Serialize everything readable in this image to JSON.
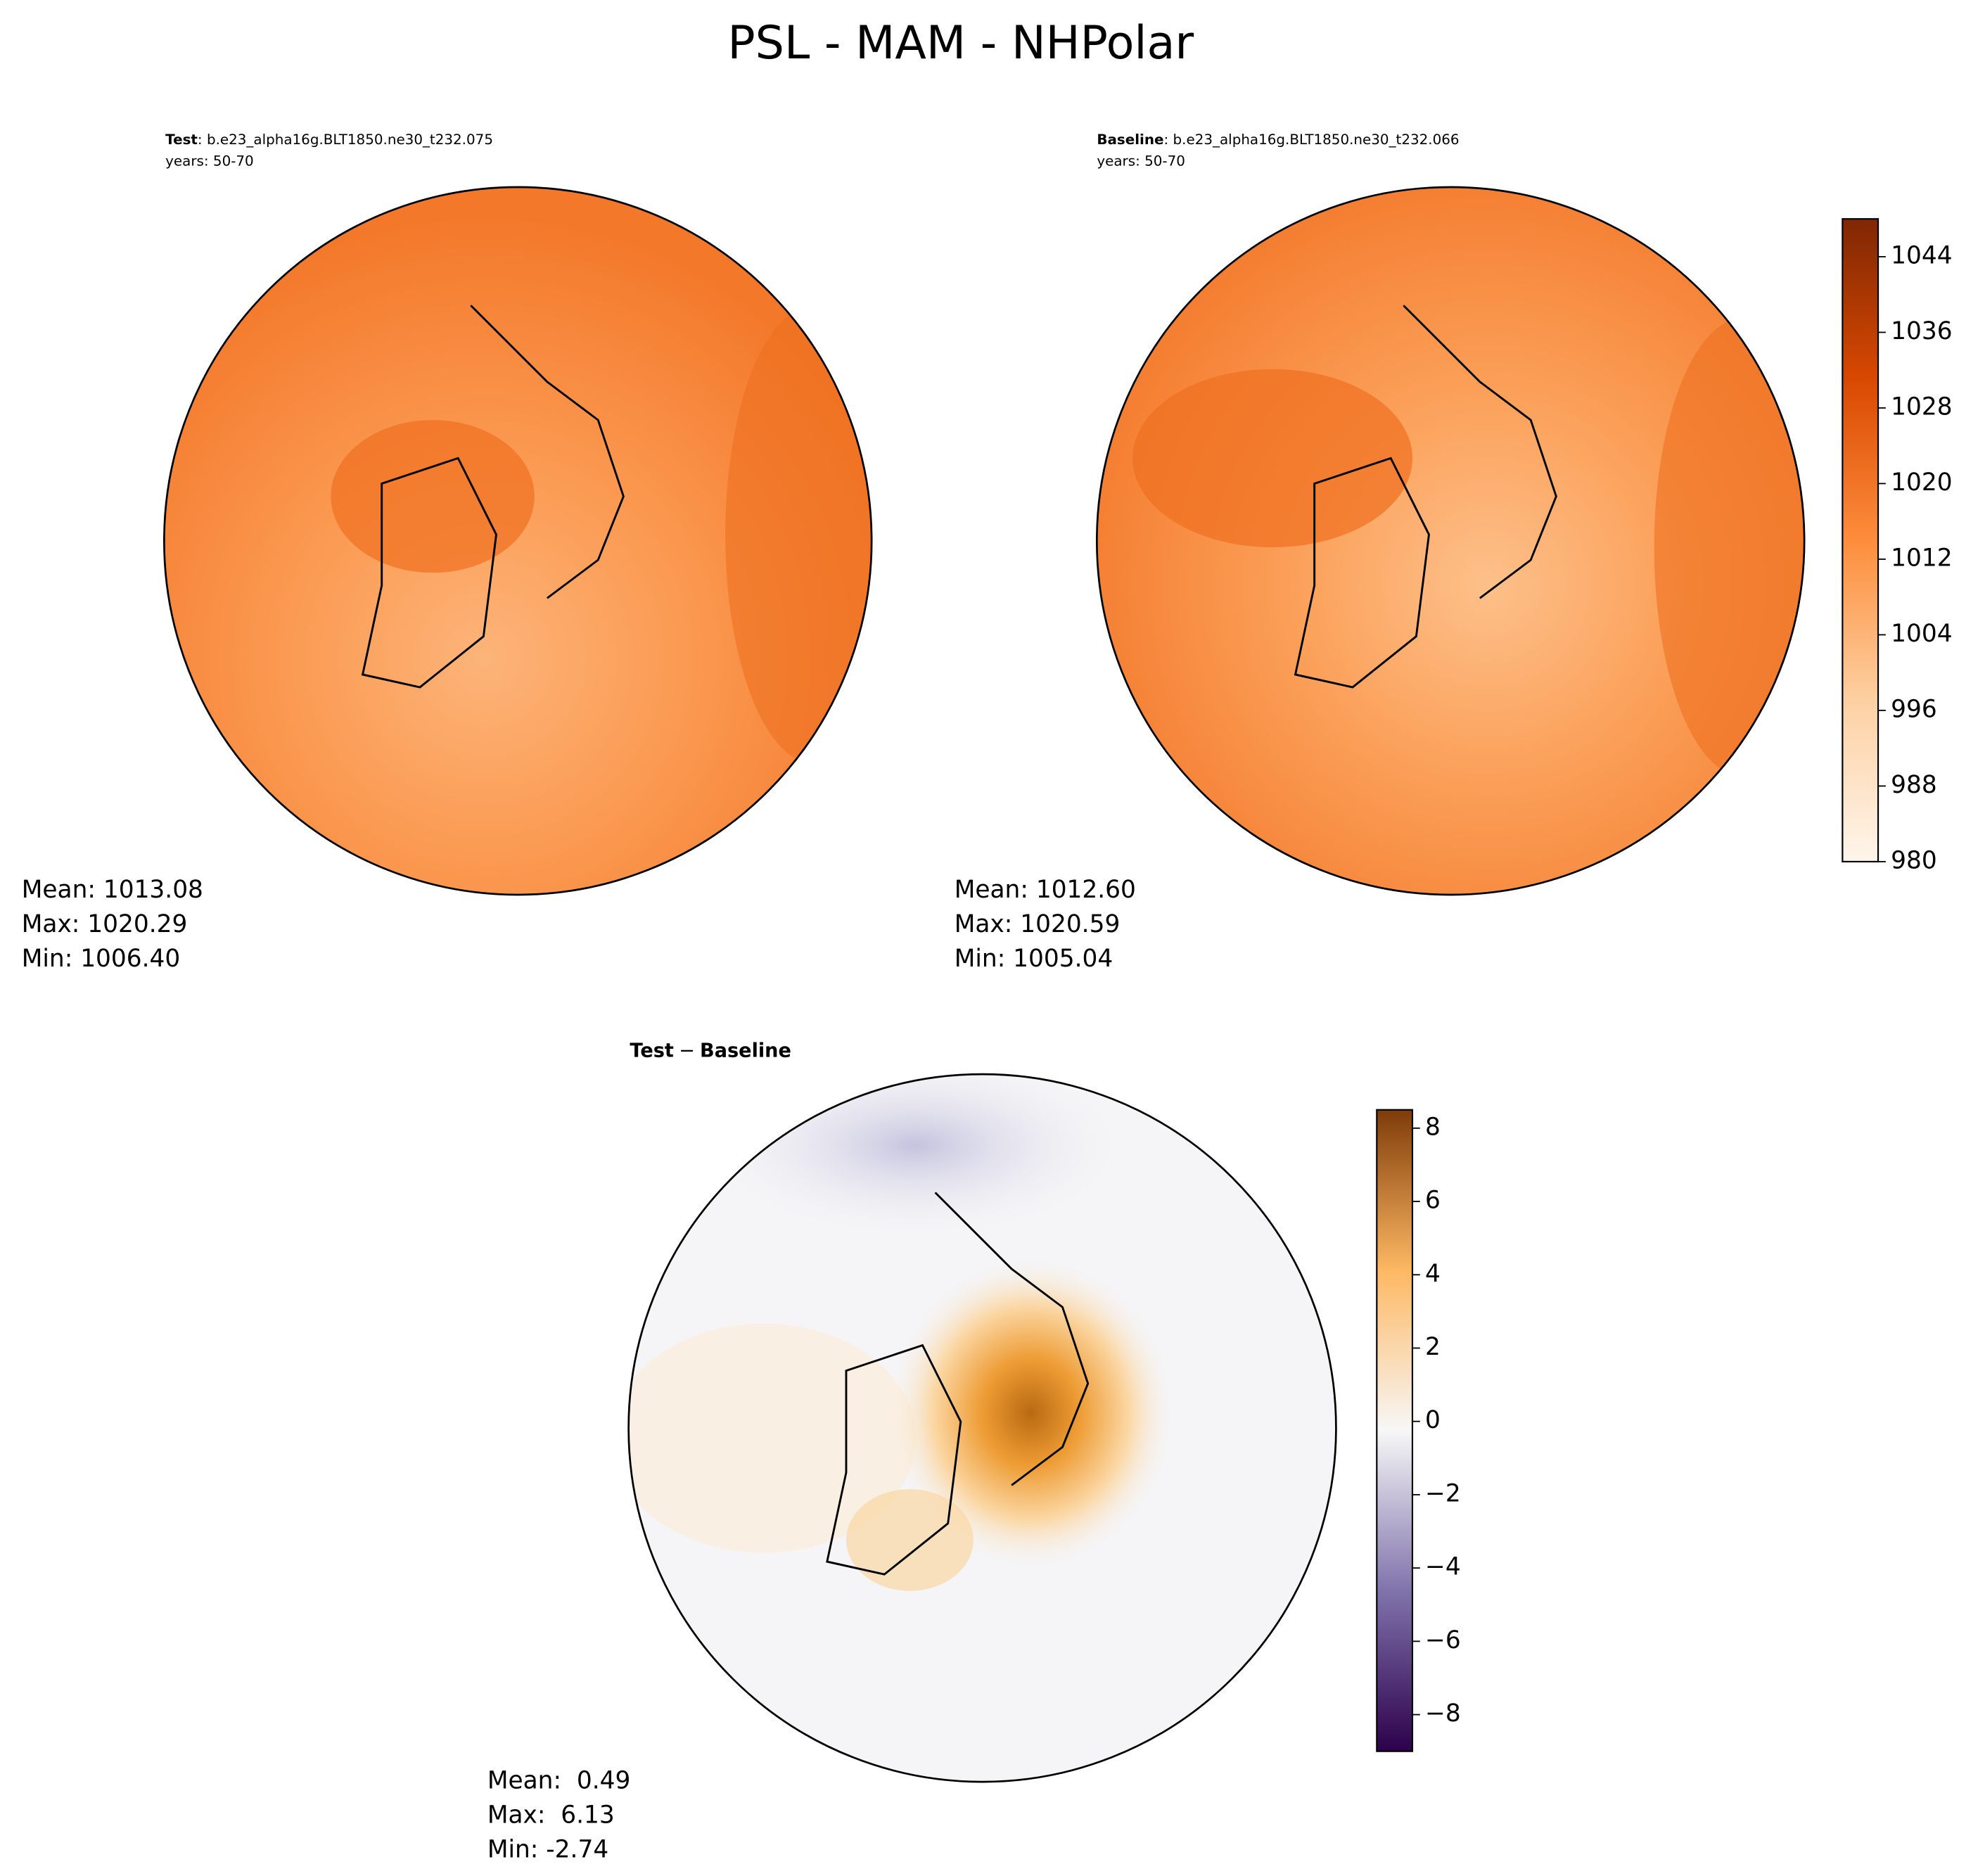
{
  "title": "PSL - MAM - NHPolar",
  "chart_data": [
    {
      "type": "contour",
      "title_label": "Test",
      "title": ": b.e23_alpha16g.BLT1850.ne30_t232.075",
      "subtitle": "years: 50-70",
      "stats": [
        "Mean: 1013.08",
        "Max: 1020.29",
        "Min: 1006.40"
      ]
    },
    {
      "type": "contour",
      "title_label": "Baseline",
      "title": ": b.e23_alpha16g.BLT1850.ne30_t232.066",
      "subtitle": "years: 50-70",
      "stats": [
        "Mean: 1012.60",
        "Max: 1020.59",
        "Min: 1005.04"
      ],
      "colorbar": {
        "ylim": [
          980,
          1048
        ],
        "yticks": [
          980,
          988,
          996,
          1004,
          1012,
          1020,
          1028,
          1036,
          1044
        ],
        "colors": [
          "#fff5eb",
          "#fdd0a2",
          "#fd8d3c",
          "#d94801",
          "#7f2704"
        ]
      }
    },
    {
      "type": "contour",
      "title_label": "Test",
      "title_sep": "−",
      "title_label2": "Baseline",
      "stats": [
        "Mean:  0.49",
        "Max:  6.13",
        "Min: -2.74"
      ],
      "colorbar": {
        "ylim": [
          -9,
          8.5
        ],
        "yticks": [
          {
            "value": -8,
            "label": "−8"
          },
          {
            "value": -6,
            "label": "−6"
          },
          {
            "value": -4,
            "label": "−4"
          },
          {
            "value": -2,
            "label": "−2"
          },
          0,
          2,
          4,
          6,
          8
        ],
        "colors": [
          "#2d004b",
          "#8073ac",
          "#f7f7f7",
          "#fdb863",
          "#7f3b08"
        ]
      }
    }
  ]
}
